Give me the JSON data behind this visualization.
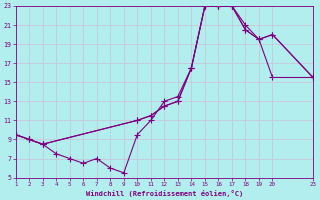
{
  "xlabel": "Windchill (Refroidissement éolien,°C)",
  "bg_color": "#b2eeee",
  "line_color": "#800080",
  "grid_color": "#c8c8d8",
  "xlim": [
    1,
    23
  ],
  "ylim": [
    5,
    23
  ],
  "xticks": [
    1,
    2,
    3,
    4,
    5,
    6,
    7,
    8,
    9,
    10,
    11,
    12,
    13,
    14,
    15,
    16,
    17,
    18,
    19,
    20,
    23
  ],
  "yticks": [
    5,
    7,
    9,
    11,
    13,
    15,
    17,
    19,
    21,
    23
  ],
  "curve1_x": [
    1,
    2,
    3,
    4,
    5,
    6,
    7,
    8,
    9,
    10,
    11,
    12,
    13,
    14,
    15,
    16,
    17,
    18,
    19,
    20,
    23
  ],
  "curve1_y": [
    9.5,
    9.0,
    8.5,
    7.5,
    7.0,
    6.5,
    7.0,
    6.0,
    5.5,
    9.5,
    11.0,
    13.0,
    13.5,
    16.5,
    23.0,
    23.0,
    23.0,
    20.5,
    19.5,
    20.0,
    15.5
  ],
  "curve2_x": [
    1,
    2,
    3,
    10,
    11,
    12,
    13,
    14,
    15,
    16,
    17,
    18,
    19,
    20,
    23
  ],
  "curve2_y": [
    9.5,
    9.0,
    8.5,
    11.0,
    11.5,
    12.5,
    13.0,
    16.5,
    23.0,
    23.0,
    23.0,
    21.0,
    19.5,
    15.5,
    15.5
  ],
  "curve3_x": [
    1,
    2,
    3,
    10,
    11,
    12,
    13,
    14,
    15,
    16,
    17,
    18,
    19,
    20,
    23
  ],
  "curve3_y": [
    9.5,
    9.0,
    8.5,
    11.0,
    11.5,
    12.5,
    13.0,
    16.5,
    23.0,
    23.0,
    23.0,
    20.5,
    19.5,
    20.0,
    15.5
  ]
}
